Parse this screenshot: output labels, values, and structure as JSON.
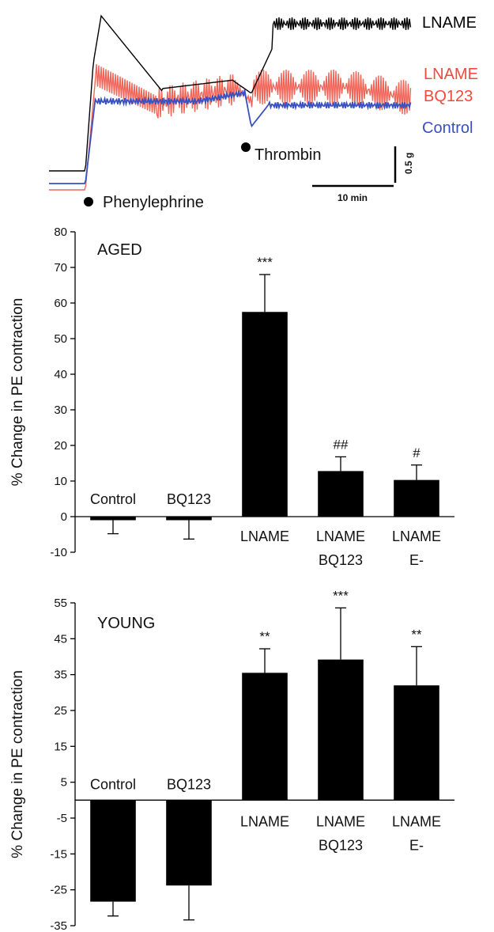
{
  "chart_data": [
    {
      "type": "line",
      "panel": "trace",
      "series": [
        {
          "name": "LNAME",
          "label_lines": [
            "LNAME"
          ],
          "color": "#000000"
        },
        {
          "name": "LNAME BQ123",
          "label_lines": [
            "LNAME",
            "BQ123"
          ],
          "color": "#ef4a3c"
        },
        {
          "name": "Control",
          "label_lines": [
            "Control"
          ],
          "color": "#3850c0"
        }
      ],
      "markers": [
        "Phenylephrine",
        "Thrombin"
      ],
      "scalebar": {
        "y_label": "0.5 g",
        "x_label": "10 min"
      }
    },
    {
      "type": "bar",
      "panel": "aged",
      "annotation_title": "AGED",
      "ylabel": "% Change in PE contraction",
      "ylim": [
        -10,
        80
      ],
      "yticks": [
        -10,
        0,
        10,
        20,
        30,
        40,
        50,
        60,
        70,
        80
      ],
      "categories": [
        {
          "lines": [
            "Control"
          ]
        },
        {
          "lines": [
            "BQ123"
          ]
        },
        {
          "lines": [
            "LNAME"
          ]
        },
        {
          "lines": [
            "LNAME",
            "BQ123"
          ]
        },
        {
          "lines": [
            "LNAME",
            "E-"
          ]
        }
      ],
      "values": [
        -1,
        -1,
        57.5,
        12.8,
        10.3
      ],
      "errors": [
        3.8,
        5.3,
        10.5,
        4.0,
        4.2
      ],
      "significance": [
        "",
        "",
        "***",
        "##",
        "#"
      ],
      "bar_color": "#000000"
    },
    {
      "type": "bar",
      "panel": "young",
      "annotation_title": "YOUNG",
      "ylabel": "% Change in PE contraction",
      "ylim": [
        -35,
        55
      ],
      "yticks": [
        -35,
        -25,
        -15,
        -5,
        5,
        15,
        25,
        35,
        45,
        55
      ],
      "categories": [
        {
          "lines": [
            "Control"
          ]
        },
        {
          "lines": [
            "BQ123"
          ]
        },
        {
          "lines": [
            "LNAME"
          ]
        },
        {
          "lines": [
            "LNAME",
            "BQ123"
          ]
        },
        {
          "lines": [
            "LNAME",
            "E-"
          ]
        }
      ],
      "values": [
        -28.3,
        -23.8,
        35.5,
        39.2,
        32.0
      ],
      "errors": [
        4.0,
        9.6,
        6.7,
        14.4,
        10.8
      ],
      "significance": [
        "",
        "",
        "**",
        "***",
        "**"
      ],
      "bar_color": "#000000"
    }
  ]
}
